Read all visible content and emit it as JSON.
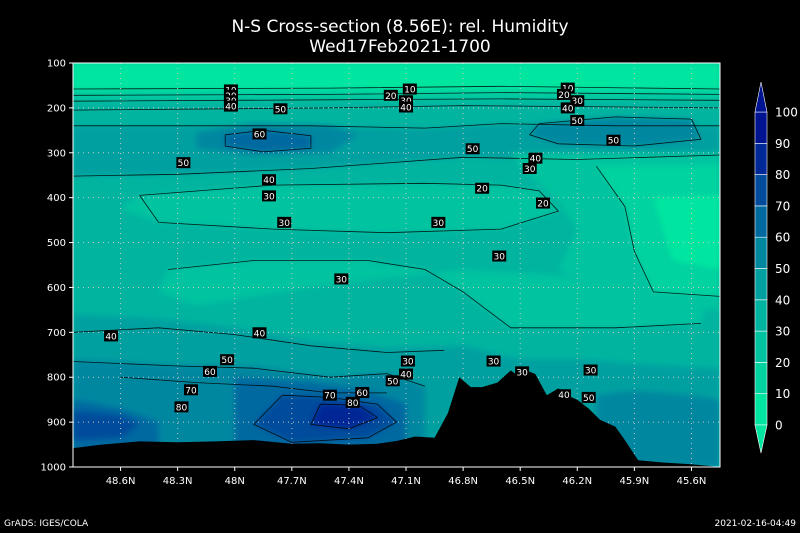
{
  "title_line1": "N-S Cross-section (8.56E): rel. Humidity",
  "title_line2": "Wed17Feb2021-1700",
  "footer_left": "GrADS: IGES/COLA",
  "footer_right": "2021-02-16-04:49",
  "chart_data": {
    "type": "heatmap",
    "title": "N-S Cross-section (8.56E): rel. Humidity",
    "subtitle": "Wed17Feb2021-1700",
    "xlabel": "",
    "ylabel": "",
    "x_ticks": [
      "48.6N",
      "48.3N",
      "48N",
      "47.7N",
      "47.4N",
      "47.1N",
      "46.8N",
      "46.5N",
      "46.2N",
      "45.9N",
      "45.6N"
    ],
    "y_ticks": [
      "100",
      "200",
      "300",
      "400",
      "500",
      "600",
      "700",
      "800",
      "900",
      "1000"
    ],
    "x_range_lat": [
      48.85,
      45.45
    ],
    "y_range_hpa": [
      100,
      1000
    ],
    "grid": true,
    "colorbar": {
      "levels": [
        0,
        10,
        20,
        30,
        40,
        50,
        60,
        70,
        80,
        90,
        100
      ],
      "colors": [
        "#00e6a0",
        "#00d2a0",
        "#00c3a0",
        "#00b4a0",
        "#00a0a0",
        "#0087a0",
        "#0069a0",
        "#004b9b",
        "#002896",
        "#001491"
      ],
      "placement": "right"
    },
    "contour_labels": [
      {
        "v": "10",
        "lat": 48.02,
        "p": 160
      },
      {
        "v": "20",
        "lat": 48.02,
        "p": 172
      },
      {
        "v": "30",
        "lat": 48.02,
        "p": 184
      },
      {
        "v": "40",
        "lat": 48.02,
        "p": 196
      },
      {
        "v": "10",
        "lat": 47.08,
        "p": 158
      },
      {
        "v": "20",
        "lat": 47.18,
        "p": 172
      },
      {
        "v": "30",
        "lat": 47.1,
        "p": 184
      },
      {
        "v": "40",
        "lat": 47.1,
        "p": 198
      },
      {
        "v": "10",
        "lat": 46.25,
        "p": 156
      },
      {
        "v": "20",
        "lat": 46.27,
        "p": 170
      },
      {
        "v": "30",
        "lat": 46.2,
        "p": 184
      },
      {
        "v": "40",
        "lat": 46.25,
        "p": 200
      },
      {
        "v": "50",
        "lat": 46.2,
        "p": 228
      },
      {
        "v": "50",
        "lat": 47.76,
        "p": 202
      },
      {
        "v": "60",
        "lat": 47.87,
        "p": 258
      },
      {
        "v": "50",
        "lat": 46.01,
        "p": 272
      },
      {
        "v": "50",
        "lat": 46.75,
        "p": 291
      },
      {
        "v": "50",
        "lat": 48.27,
        "p": 322
      },
      {
        "v": "40",
        "lat": 46.42,
        "p": 312
      },
      {
        "v": "30",
        "lat": 46.45,
        "p": 335
      },
      {
        "v": "40",
        "lat": 47.82,
        "p": 360
      },
      {
        "v": "30",
        "lat": 47.82,
        "p": 396
      },
      {
        "v": "20",
        "lat": 46.7,
        "p": 379
      },
      {
        "v": "20",
        "lat": 46.38,
        "p": 412
      },
      {
        "v": "30",
        "lat": 47.74,
        "p": 455
      },
      {
        "v": "30",
        "lat": 46.93,
        "p": 455
      },
      {
        "v": "30",
        "lat": 46.61,
        "p": 530
      },
      {
        "v": "30",
        "lat": 47.44,
        "p": 581
      },
      {
        "v": "40",
        "lat": 48.65,
        "p": 708
      },
      {
        "v": "40",
        "lat": 47.87,
        "p": 701
      },
      {
        "v": "50",
        "lat": 48.04,
        "p": 761
      },
      {
        "v": "60",
        "lat": 48.13,
        "p": 787
      },
      {
        "v": "70",
        "lat": 48.23,
        "p": 828
      },
      {
        "v": "80",
        "lat": 48.28,
        "p": 866
      },
      {
        "v": "30",
        "lat": 47.09,
        "p": 764
      },
      {
        "v": "40",
        "lat": 47.1,
        "p": 793
      },
      {
        "v": "50",
        "lat": 47.17,
        "p": 808
      },
      {
        "v": "30",
        "lat": 46.64,
        "p": 764
      },
      {
        "v": "30",
        "lat": 46.49,
        "p": 788
      },
      {
        "v": "30",
        "lat": 46.13,
        "p": 784
      },
      {
        "v": "40",
        "lat": 46.27,
        "p": 839
      },
      {
        "v": "50",
        "lat": 46.14,
        "p": 845
      },
      {
        "v": "70",
        "lat": 47.5,
        "p": 840
      },
      {
        "v": "60",
        "lat": 47.33,
        "p": 834
      },
      {
        "v": "80",
        "lat": 47.38,
        "p": 856
      }
    ],
    "terrain": {
      "lat": [
        48.85,
        48.7,
        48.5,
        48.3,
        48.1,
        47.9,
        47.7,
        47.55,
        47.4,
        47.25,
        47.15,
        47.05,
        46.95,
        46.88,
        46.82,
        46.76,
        46.7,
        46.62,
        46.55,
        46.5,
        46.46,
        46.42,
        46.36,
        46.3,
        46.24,
        46.2,
        46.14,
        46.08,
        46.0,
        45.95,
        45.88,
        45.75,
        45.6,
        45.45
      ],
      "p": [
        958,
        950,
        943,
        945,
        943,
        940,
        948,
        947,
        950,
        948,
        942,
        932,
        935,
        880,
        800,
        822,
        822,
        812,
        785,
        800,
        786,
        793,
        840,
        825,
        843,
        850,
        870,
        895,
        910,
        940,
        985,
        990,
        994,
        1000
      ]
    }
  }
}
